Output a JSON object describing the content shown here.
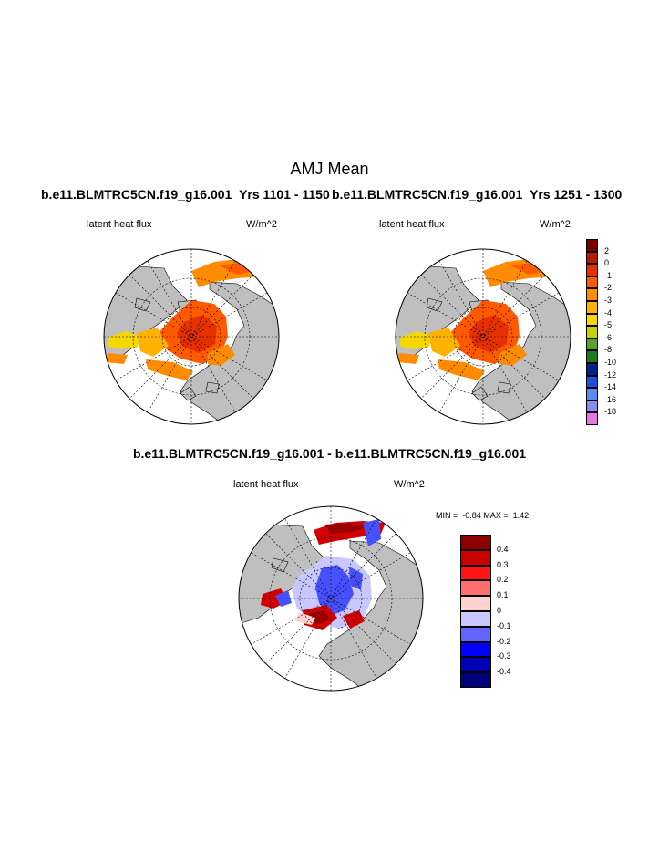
{
  "title": "AMJ Mean",
  "panels": [
    {
      "case": "b.e11.BLMTRC5CN.f19_g16.001",
      "years": "Yrs 1101 - 1150",
      "variable": "latent heat flux",
      "units": "W/m^2"
    },
    {
      "case": "b.e11.BLMTRC5CN.f19_g16.001",
      "years": "Yrs 1251 - 1300",
      "variable": "latent heat flux",
      "units": "W/m^2"
    }
  ],
  "diff_panel": {
    "title": "b.e11.BLMTRC5CN.f19_g16.001 - b.e11.BLMTRC5CN.f19_g16.001",
    "variable": "latent heat flux",
    "units": "W/m^2",
    "min_label": "MIN =",
    "min_value": "-0.84",
    "max_label": "MAX =",
    "max_value": "1.42"
  },
  "colorbar_mean": {
    "labels": [
      "2",
      "0",
      "-1",
      "-2",
      "-3",
      "-4",
      "-5",
      "-6",
      "-8",
      "-10",
      "-12",
      "-14",
      "-16",
      "-18"
    ],
    "colors": [
      "#7a0000",
      "#b51a00",
      "#e63000",
      "#ff5a00",
      "#ff8c00",
      "#ffb300",
      "#f5d800",
      "#c8d200",
      "#5aa02a",
      "#1e7a1e",
      "#00208c",
      "#1e50dc",
      "#5a8cf0",
      "#8c8cf0",
      "#e676e6"
    ]
  },
  "colorbar_diff": {
    "labels": [
      "0.4",
      "0.3",
      "0.2",
      "0.1",
      "0",
      "-0.1",
      "-0.2",
      "-0.3",
      "-0.4"
    ],
    "colors": [
      "#8c0000",
      "#c80000",
      "#ff1414",
      "#ff6e6e",
      "#ffd2d2",
      "#c8c8ff",
      "#6464ff",
      "#0000ff",
      "#0000b4",
      "#00007a"
    ]
  },
  "map_colors": {
    "land": "#bfbfbf",
    "ocean": "#ffffff",
    "flux_mid": "#ff5a00",
    "flux_low": "#ff8c00",
    "flux_weak": "#ffb300",
    "flux_yellow": "#f5d800",
    "flux_strong": "#e63000",
    "diff_blue": "#4650ff",
    "diff_lightblue": "#c8c8ff",
    "diff_red": "#d40000",
    "diff_darkred": "#9a0000",
    "diff_pink": "#ffd2d2"
  }
}
